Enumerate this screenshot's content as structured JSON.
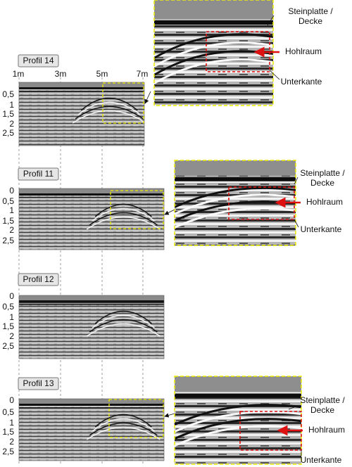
{
  "x_axis_labels": [
    "1m",
    "3m",
    "5m",
    "7m"
  ],
  "profiles": [
    {
      "label": "Profil 14",
      "depth_labels": [
        "0,5",
        "1",
        "1,5",
        "2",
        "2,5"
      ]
    },
    {
      "label": "Profil 11",
      "depth_labels": [
        "0",
        "0,5",
        "1",
        "1,5",
        "2",
        "2,5"
      ]
    },
    {
      "label": "Profil 12",
      "depth_labels": [
        "0",
        "0,5",
        "1",
        "1,5",
        "2",
        "2,5"
      ]
    },
    {
      "label": "Profil 13",
      "depth_labels": [
        "0",
        "0,5",
        "1",
        "1,5",
        "2",
        "2,5"
      ]
    }
  ],
  "zooms": [
    {
      "slab_lines": [
        "Steinplatte /",
        "Decke"
      ],
      "cavity": "Hohlraum",
      "lower_edge": "Unterkante"
    },
    {
      "slab_lines": [
        "Steinplatte /",
        "Decke"
      ],
      "cavity": "Hohlraum",
      "lower_edge": "Unterkante"
    },
    {
      "slab_lines": [
        "Steinplatte /",
        "Decke"
      ],
      "cavity": "Hohlraum",
      "lower_edge": "Unterkante"
    }
  ]
}
